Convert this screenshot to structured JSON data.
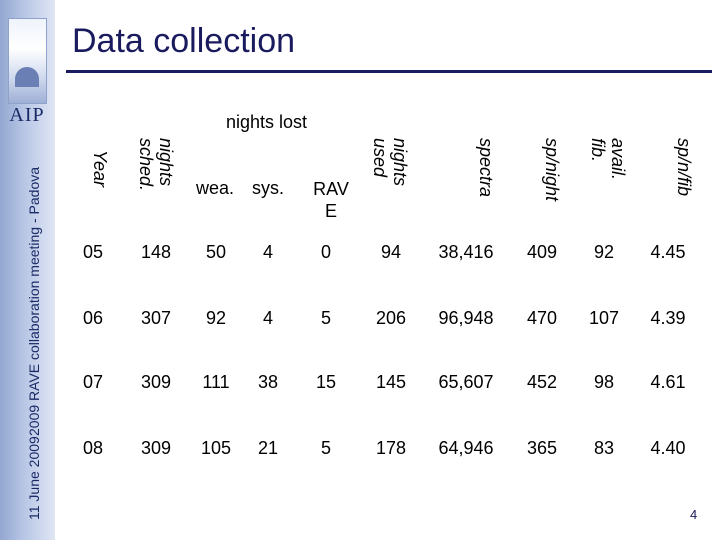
{
  "sidebar": {
    "logo_text": "AIP",
    "date": "11 June 2009",
    "meeting": "2009 RAVE collaboration meeting - Padova"
  },
  "slide": {
    "title": "Data collection",
    "page_number": "4"
  },
  "table": {
    "group_header": "nights lost",
    "headers": {
      "year": "Year",
      "nights_sched": "nights sched.",
      "wea": "wea.",
      "sys": "sys.",
      "rave": "RAVE",
      "nights_used": "nights used",
      "spectra": "spectra",
      "sp_night": "sp/night",
      "avail_fib": "avail. fib.",
      "sp_n_fib": "sp/n/fib"
    },
    "rows": [
      [
        "05",
        "148",
        "50",
        "4",
        "0",
        "94",
        "38,416",
        "409",
        "92",
        "4.45"
      ],
      [
        "06",
        "307",
        "92",
        "4",
        "5",
        "206",
        "96,948",
        "470",
        "107",
        "4.39"
      ],
      [
        "07",
        "309",
        "111",
        "38",
        "15",
        "145",
        "65,607",
        "452",
        "98",
        "4.61"
      ],
      [
        "08",
        "309",
        "105",
        "21",
        "5",
        "178",
        "64,946",
        "365",
        "83",
        "4.40"
      ]
    ]
  }
}
